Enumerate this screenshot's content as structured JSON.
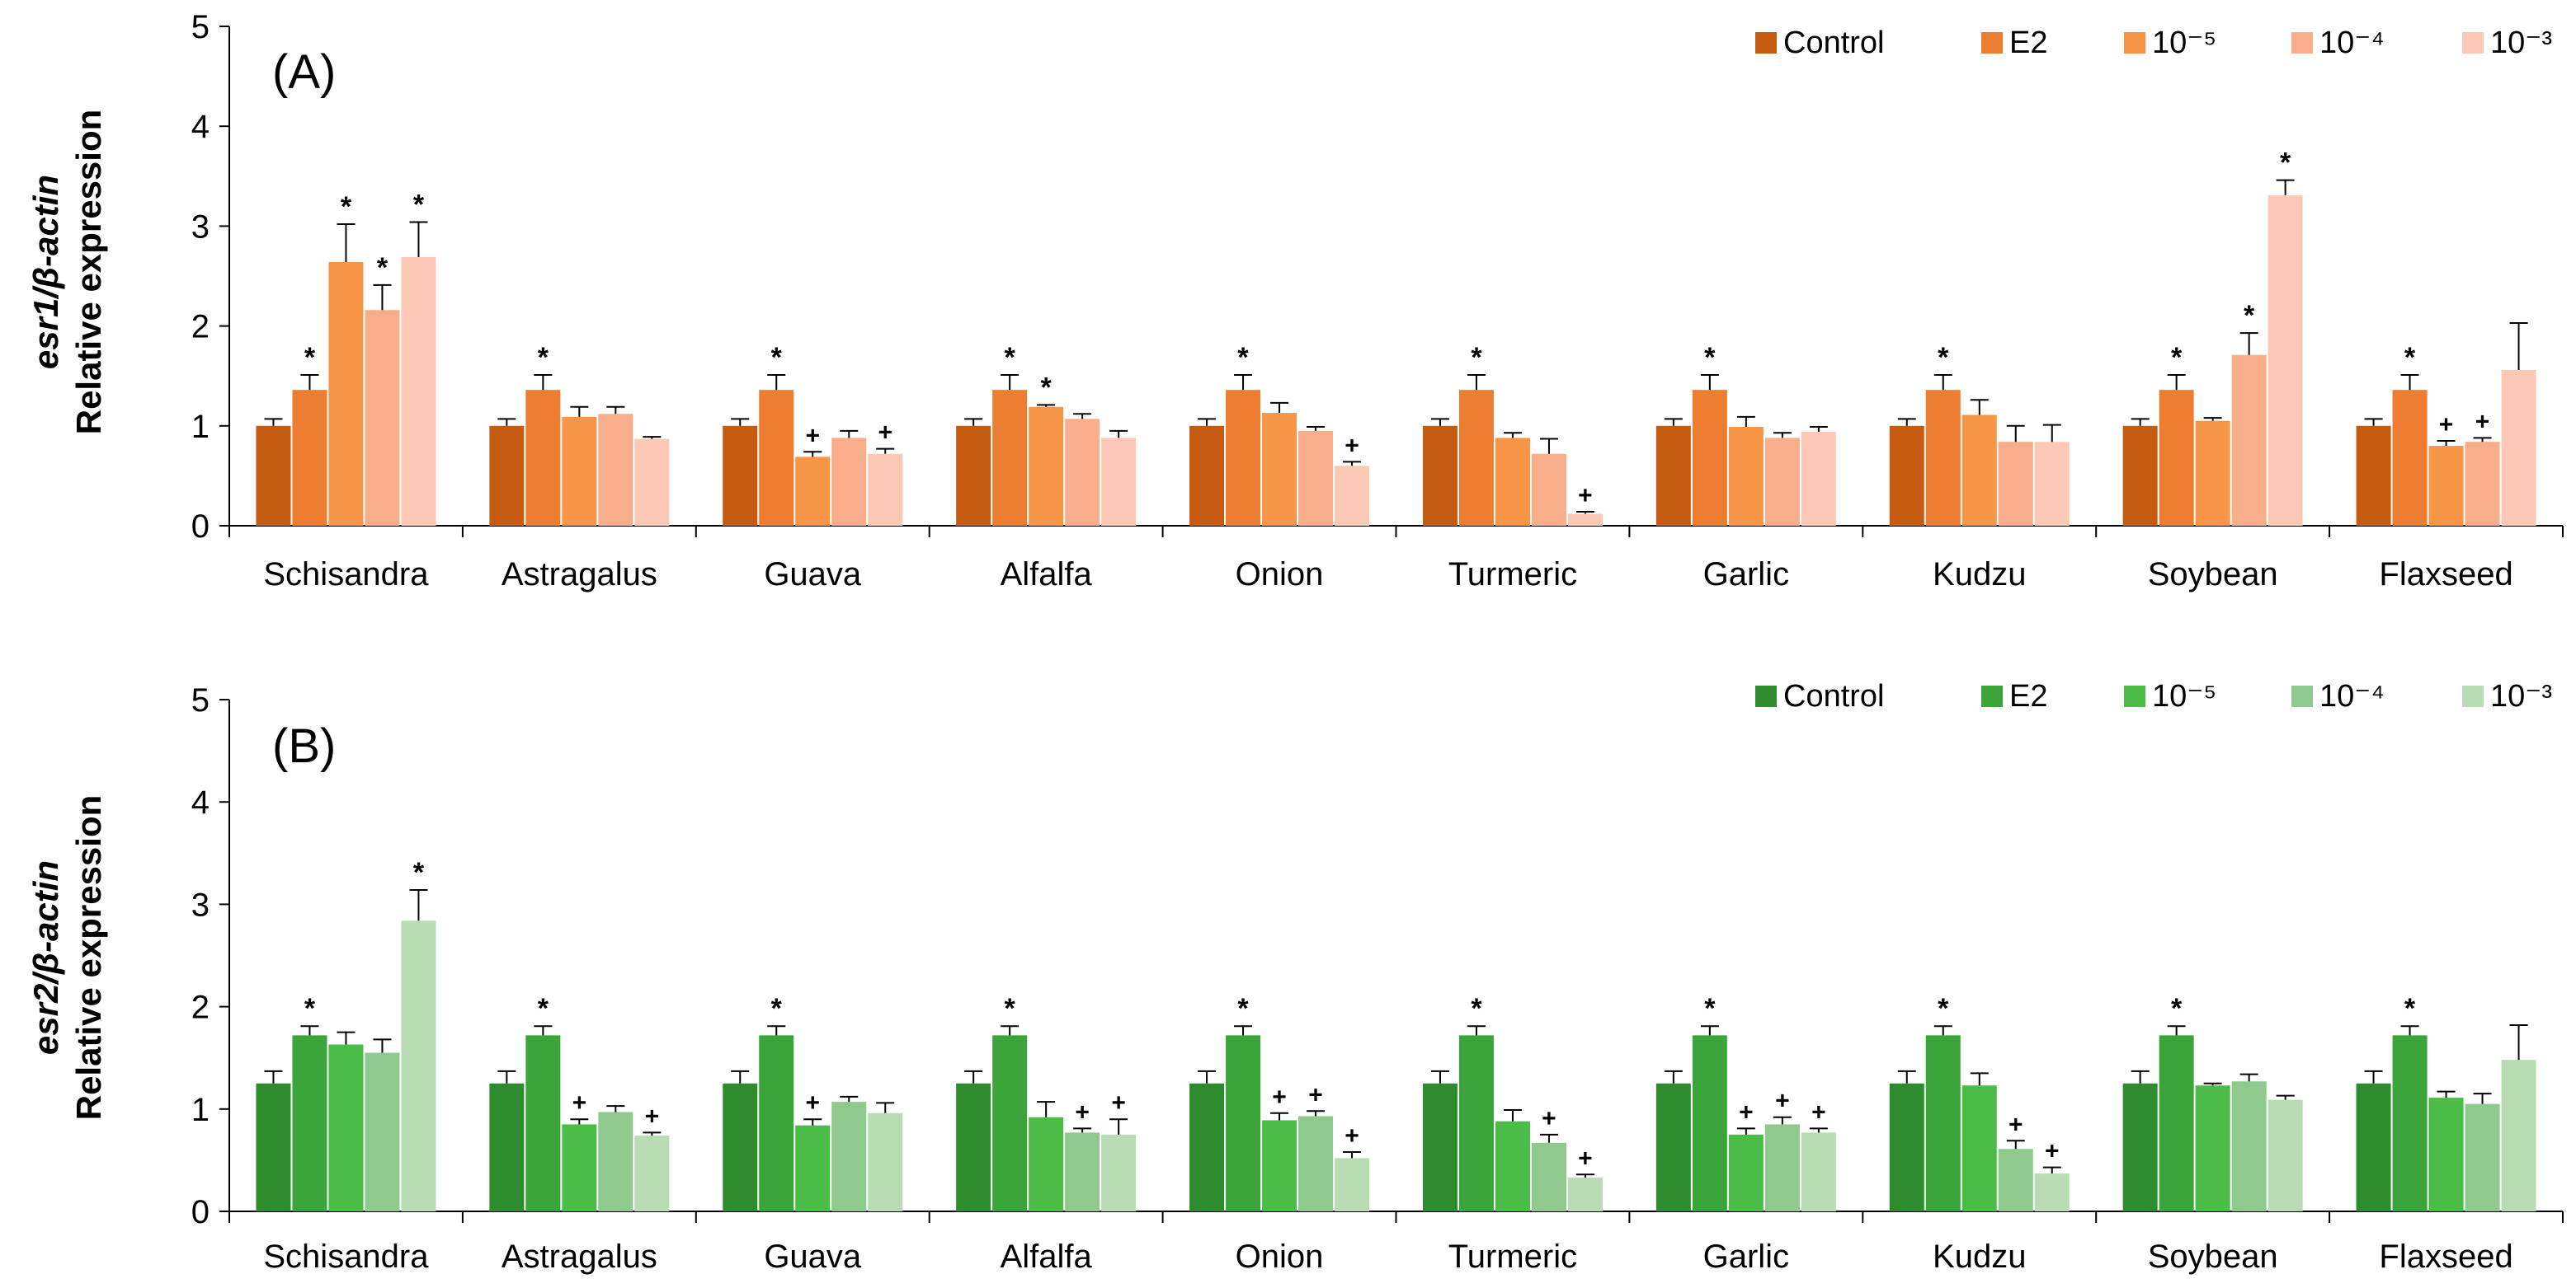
{
  "chart_data": [
    {
      "type": "bar",
      "panel_label": "(A)",
      "ylabel_gene": "esr1/β-actin",
      "ylabel": "Relative expression",
      "ylim": [
        0,
        5
      ],
      "yticks": [
        "0",
        "1",
        "2",
        "3",
        "4",
        "5"
      ],
      "legend_position": "top-right",
      "categories": [
        "Schisandra",
        "Astragalus",
        "Guava",
        "Alfalfa",
        "Onion",
        "Turmeric",
        "Garlic",
        "Kudzu",
        "Soybean",
        "Flaxseed"
      ],
      "series": [
        {
          "name": "Control",
          "color": "#c55a11",
          "values": [
            1.0,
            1.0,
            1.0,
            1.0,
            1.0,
            1.0,
            1.0,
            1.0,
            1.0,
            1.0
          ],
          "errors": [
            0.07,
            0.07,
            0.07,
            0.07,
            0.07,
            0.07,
            0.07,
            0.07,
            0.07,
            0.07
          ],
          "marks": [
            "",
            "",
            "",
            "",
            "",
            "",
            "",
            "",
            "",
            ""
          ]
        },
        {
          "name": "E2",
          "color": "#ed7d31",
          "values": [
            1.36,
            1.36,
            1.36,
            1.36,
            1.36,
            1.36,
            1.36,
            1.36,
            1.36,
            1.36
          ],
          "errors": [
            0.15,
            0.15,
            0.15,
            0.15,
            0.15,
            0.15,
            0.15,
            0.15,
            0.15,
            0.15
          ],
          "marks": [
            "*",
            "*",
            "*",
            "*",
            "*",
            "*",
            "*",
            "*",
            "*",
            "*"
          ]
        },
        {
          "name": "10⁻⁵",
          "color": "#f79646",
          "values": [
            2.64,
            1.09,
            0.69,
            1.19,
            1.13,
            0.88,
            0.99,
            1.11,
            1.05,
            0.8
          ],
          "errors": [
            0.38,
            0.1,
            0.05,
            0.02,
            0.1,
            0.05,
            0.1,
            0.15,
            0.03,
            0.05
          ],
          "marks": [
            "*",
            "",
            "+",
            "*",
            "",
            "",
            "",
            "",
            "",
            "+"
          ]
        },
        {
          "name": "10⁻⁴",
          "color": "#f8ae8a",
          "values": [
            2.16,
            1.12,
            0.88,
            1.07,
            0.95,
            0.72,
            0.88,
            0.84,
            1.71,
            0.84
          ],
          "errors": [
            0.25,
            0.07,
            0.07,
            0.05,
            0.04,
            0.15,
            0.05,
            0.16,
            0.22,
            0.04
          ],
          "marks": [
            "*",
            "",
            "",
            "",
            "",
            "",
            "",
            "",
            "*",
            "+"
          ]
        },
        {
          "name": "10⁻³",
          "color": "#fbc9b5",
          "values": [
            2.69,
            0.87,
            0.72,
            0.88,
            0.6,
            0.12,
            0.94,
            0.84,
            3.31,
            1.56
          ],
          "errors": [
            0.35,
            0.02,
            0.05,
            0.07,
            0.04,
            0.02,
            0.05,
            0.17,
            0.15,
            0.47
          ],
          "marks": [
            "*",
            "",
            "+",
            "",
            "+",
            "+",
            "",
            "",
            "*",
            ""
          ]
        }
      ]
    },
    {
      "type": "bar",
      "panel_label": "(B)",
      "ylabel_gene": "esr2/β-actin",
      "ylabel": "Relative expression",
      "ylim": [
        0,
        5
      ],
      "yticks": [
        "0",
        "1",
        "2",
        "3",
        "4",
        "5"
      ],
      "legend_position": "top-right",
      "categories": [
        "Schisandra",
        "Astragalus",
        "Guava",
        "Alfalfa",
        "Onion",
        "Turmeric",
        "Garlic",
        "Kudzu",
        "Soybean",
        "Flaxseed"
      ],
      "series": [
        {
          "name": "Control",
          "color": "#2e8b2e",
          "values": [
            1.25,
            1.25,
            1.25,
            1.25,
            1.25,
            1.25,
            1.25,
            1.25,
            1.25,
            1.25
          ],
          "errors": [
            0.12,
            0.12,
            0.12,
            0.12,
            0.12,
            0.12,
            0.12,
            0.12,
            0.12,
            0.12
          ],
          "marks": [
            "",
            "",
            "",
            "",
            "",
            "",
            "",
            "",
            "",
            ""
          ]
        },
        {
          "name": "E2",
          "color": "#3ba53b",
          "values": [
            1.72,
            1.72,
            1.72,
            1.72,
            1.72,
            1.72,
            1.72,
            1.72,
            1.72,
            1.72
          ],
          "errors": [
            0.09,
            0.09,
            0.09,
            0.09,
            0.09,
            0.09,
            0.09,
            0.09,
            0.09,
            0.09
          ],
          "marks": [
            "*",
            "*",
            "*",
            "*",
            "*",
            "*",
            "*",
            "*",
            "*",
            "*"
          ]
        },
        {
          "name": "10⁻⁵",
          "color": "#4bbc47",
          "values": [
            1.63,
            0.85,
            0.84,
            0.92,
            0.89,
            0.88,
            0.75,
            1.23,
            1.23,
            1.11
          ],
          "errors": [
            0.12,
            0.05,
            0.06,
            0.15,
            0.07,
            0.11,
            0.06,
            0.12,
            0.02,
            0.06
          ],
          "marks": [
            "",
            "+",
            "+",
            "",
            "+",
            "",
            "+",
            "",
            "",
            ""
          ]
        },
        {
          "name": "10⁻⁴",
          "color": "#8fc98d",
          "values": [
            1.55,
            0.97,
            1.07,
            0.77,
            0.93,
            0.67,
            0.85,
            0.61,
            1.27,
            1.05
          ],
          "errors": [
            0.13,
            0.06,
            0.05,
            0.04,
            0.05,
            0.08,
            0.07,
            0.08,
            0.07,
            0.1
          ],
          "marks": [
            "",
            "",
            "",
            "+",
            "+",
            "+",
            "+",
            "+",
            "",
            ""
          ]
        },
        {
          "name": "10⁻³",
          "color": "#b9dcb5",
          "values": [
            2.84,
            0.74,
            0.96,
            0.75,
            0.52,
            0.33,
            0.77,
            0.37,
            1.09,
            1.48
          ],
          "errors": [
            0.3,
            0.03,
            0.1,
            0.15,
            0.06,
            0.03,
            0.04,
            0.06,
            0.04,
            0.34
          ],
          "marks": [
            "*",
            "+",
            "",
            "+",
            "+",
            "+",
            "+",
            "+",
            "",
            ""
          ]
        }
      ]
    }
  ]
}
